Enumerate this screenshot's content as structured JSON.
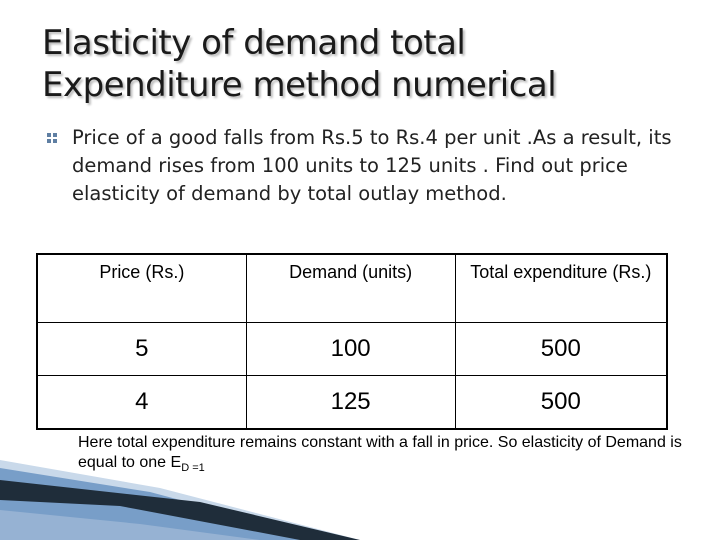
{
  "slide": {
    "title_line1": "Elasticity of demand total",
    "title_line2": "Expenditure method numerical",
    "bullet_text": "Price of a good falls from Rs.5 to Rs.4 per unit .As a result, its demand rises from 100 units to 125 units . Find out price elasticity of demand by total outlay method.",
    "table": {
      "headers": [
        "Price (Rs.)",
        "Demand (units)",
        "Total expenditure (Rs.)"
      ],
      "rows": [
        [
          "5",
          "100",
          "500"
        ],
        [
          "4",
          "125",
          "500"
        ]
      ]
    },
    "note_text": "Here total expenditure remains constant with a fall in price. So elasticity of Demand is equal to one E",
    "note_subscript": "D =1",
    "colors": {
      "deco_dark": "#1f2d3a",
      "deco_blue": "#6f97c4",
      "deco_light": "#c9d9ea"
    }
  }
}
